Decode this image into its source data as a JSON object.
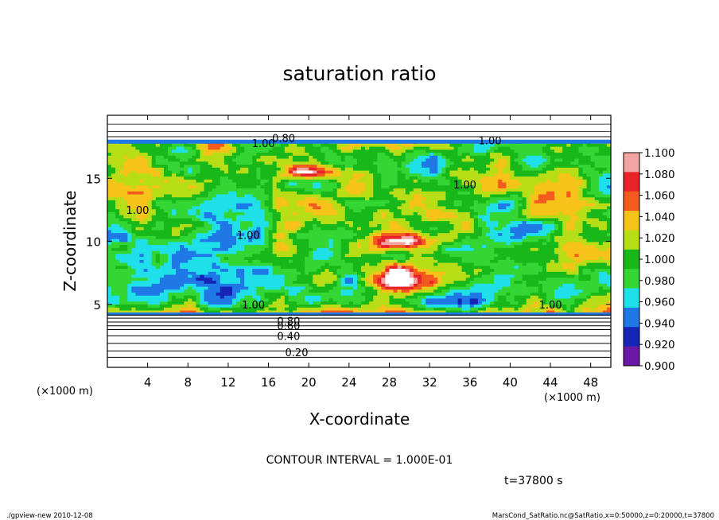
{
  "chart_data": {
    "type": "heatmap",
    "title": "saturation ratio",
    "xlabel": "X-coordinate",
    "ylabel": "Z-coordinate",
    "x_unit_left": "(×1000 m)",
    "x_unit_right": "(×1000 m)",
    "xlim": [
      0,
      50
    ],
    "ylim": [
      0,
      20
    ],
    "x_ticks": [
      4,
      8,
      12,
      16,
      20,
      24,
      28,
      32,
      36,
      40,
      44,
      48
    ],
    "y_ticks": [
      5,
      10,
      15
    ],
    "colorbar": {
      "levels": [
        "1.100",
        "1.080",
        "1.060",
        "1.040",
        "1.020",
        "1.000",
        "0.980",
        "0.960",
        "0.940",
        "0.920",
        "0.900"
      ],
      "colors": [
        "#f4a3a3",
        "#e8242a",
        "#f25a1e",
        "#f7c21a",
        "#b7dd17",
        "#18b81b",
        "#33d633",
        "#1fe0e8",
        "#1f78e6",
        "#1525b8",
        "#6a18a6"
      ]
    },
    "contour_labels": [
      {
        "text": "0.20",
        "x": 18.8,
        "z": 1.2
      },
      {
        "text": "0.40",
        "x": 18.0,
        "z": 2.5
      },
      {
        "text": "0.60",
        "x": 18.0,
        "z": 3.3
      },
      {
        "text": "0.80",
        "x": 18.0,
        "z": 3.7
      },
      {
        "text": "1.00",
        "x": 3.0,
        "z": 12.5
      },
      {
        "text": "1.00",
        "x": 14.0,
        "z": 10.5
      },
      {
        "text": "1.00",
        "x": 35.5,
        "z": 14.5
      },
      {
        "text": "1.00",
        "x": 38.0,
        "z": 18.0
      },
      {
        "text": "1.00",
        "x": 44.0,
        "z": 5.0
      },
      {
        "text": "1.00",
        "x": 14.5,
        "z": 5.0
      },
      {
        "text": "1.00",
        "x": 15.5,
        "z": 17.8
      },
      {
        "text": "0.80",
        "x": 17.5,
        "z": 18.2
      }
    ],
    "contour_interval_text": "CONTOUR INTERVAL = 1.000E-01",
    "time_text": "t=37800 s"
  },
  "footer": {
    "left": "./gpview-new  2010-12-08",
    "right": "MarsCond_SatRatio.nc@SatRatio,x=0:50000,z=0:20000,t=37800"
  }
}
